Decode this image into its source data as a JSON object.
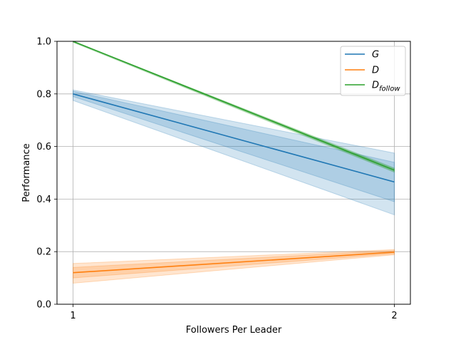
{
  "chart_data": {
    "type": "line",
    "title": "",
    "xlabel": "Followers Per Leader",
    "ylabel": "Performance",
    "xlim": [
      0.95,
      2.05
    ],
    "ylim": [
      0.0,
      1.0
    ],
    "x_ticks": [
      "1",
      "2"
    ],
    "y_ticks": [
      "0.0",
      "0.2",
      "0.4",
      "0.6",
      "0.8",
      "1.0"
    ],
    "grid": true,
    "legend_position": "top-right",
    "x": [
      1,
      2
    ],
    "series": [
      {
        "name": "G",
        "legend_main": "G",
        "legend_sub": "",
        "color": "#1f77b4",
        "values": [
          0.8,
          0.465
        ],
        "band_inner": {
          "lower": [
            0.79,
            0.39
          ],
          "upper": [
            0.81,
            0.54
          ]
        },
        "band_outer": {
          "lower": [
            0.775,
            0.34
          ],
          "upper": [
            0.815,
            0.575
          ]
        }
      },
      {
        "name": "D",
        "legend_main": "D",
        "legend_sub": "",
        "color": "#ff7f0e",
        "values": [
          0.12,
          0.198
        ],
        "band_inner": {
          "lower": [
            0.1,
            0.192
          ],
          "upper": [
            0.14,
            0.204
          ]
        },
        "band_outer": {
          "lower": [
            0.08,
            0.188
          ],
          "upper": [
            0.155,
            0.208
          ]
        }
      },
      {
        "name": "D_follow",
        "legend_main": "D",
        "legend_sub": "follow",
        "color": "#2ca02c",
        "values": [
          1.0,
          0.51
        ],
        "band_inner": {
          "lower": [
            0.998,
            0.505
          ],
          "upper": [
            1.0,
            0.515
          ]
        },
        "band_outer": {
          "lower": [
            0.996,
            0.502
          ],
          "upper": [
            1.0,
            0.518
          ]
        }
      }
    ]
  }
}
